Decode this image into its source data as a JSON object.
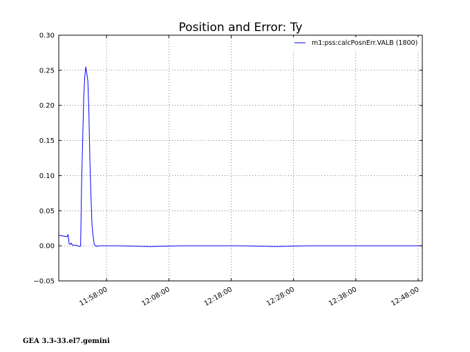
{
  "chart_data": {
    "type": "line",
    "title": "Position and Error:  Ty",
    "xlabel": "",
    "ylabel": "",
    "x_is_time": true,
    "xlim": [
      "11:50:20",
      "12:48:40"
    ],
    "ylim": [
      -0.05,
      0.3
    ],
    "yticks": [
      -0.05,
      0.0,
      0.05,
      0.1,
      0.15,
      0.2,
      0.25,
      0.3
    ],
    "ytick_labels": [
      "−0.05",
      "0.00",
      "0.05",
      "0.10",
      "0.15",
      "0.20",
      "0.25",
      "0.30"
    ],
    "xticks": [
      "11:58:00",
      "12:08:00",
      "12:18:00",
      "12:28:00",
      "12:38:00",
      "12:48:00"
    ],
    "grid": true,
    "legend_position": "top-right",
    "series": [
      {
        "name": "m1:pss:calcPosnErr.VALB (1800)",
        "color": "#0000ff",
        "x": [
          "11:50:20",
          "11:51:00",
          "11:51:40",
          "11:51:50",
          "11:52:00",
          "11:52:10",
          "11:52:20",
          "11:52:30",
          "11:53:00",
          "11:53:40",
          "11:53:50",
          "11:54:00",
          "11:54:10",
          "11:54:20",
          "11:54:30",
          "11:54:40",
          "11:54:50",
          "11:55:00",
          "11:55:10",
          "11:55:20",
          "11:55:30",
          "11:55:40",
          "11:55:50",
          "11:56:00",
          "11:56:10",
          "11:56:20",
          "11:56:30",
          "11:56:40",
          "11:57:00",
          "11:58:00",
          "12:00:00",
          "12:05:00",
          "12:10:00",
          "12:15:00",
          "12:20:00",
          "12:25:00",
          "12:30:00",
          "12:35:00",
          "12:40:00",
          "12:45:00",
          "12:48:40"
        ],
        "values": [
          0.015,
          0.014,
          0.013,
          0.016,
          0.003,
          0.002,
          0.004,
          0.001,
          0.001,
          -0.001,
          0.0,
          0.09,
          0.15,
          0.21,
          0.24,
          0.255,
          0.245,
          0.235,
          0.19,
          0.12,
          0.07,
          0.03,
          0.015,
          0.003,
          0.0,
          0.0,
          -0.001,
          0.0,
          0.0,
          0.0,
          0.0,
          -0.001,
          0.0,
          0.0,
          0.0,
          -0.001,
          0.0,
          0.0,
          0.0,
          0.0,
          0.0
        ]
      }
    ]
  },
  "footer": "GEA 3.3-33.el7.gemini"
}
